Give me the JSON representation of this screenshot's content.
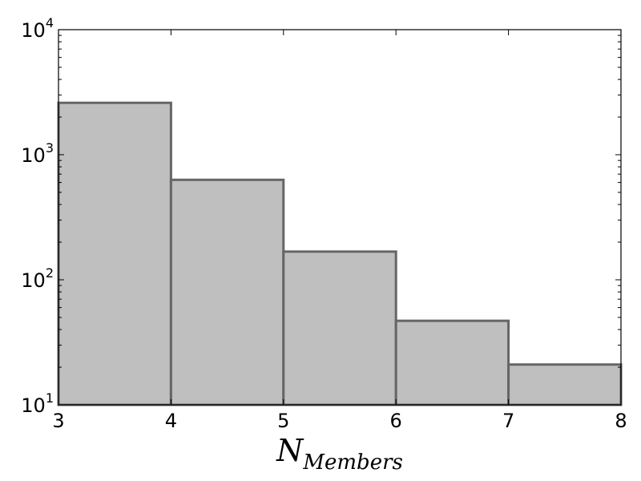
{
  "chart_data": {
    "type": "bar",
    "scale_y": "log",
    "bins": [
      {
        "x0": 3,
        "x1": 4,
        "value": 2600
      },
      {
        "x0": 4,
        "x1": 5,
        "value": 630
      },
      {
        "x0": 5,
        "x1": 6,
        "value": 168
      },
      {
        "x0": 6,
        "x1": 7,
        "value": 47
      },
      {
        "x0": 7,
        "x1": 8,
        "value": 21
      }
    ],
    "xlim": [
      3,
      8
    ],
    "ylim": [
      10,
      10000
    ],
    "x_ticks": [
      "3",
      "4",
      "5",
      "6",
      "7",
      "8"
    ],
    "y_ticks": [
      {
        "base": "10",
        "exp": "1",
        "value": 10
      },
      {
        "base": "10",
        "exp": "2",
        "value": 100
      },
      {
        "base": "10",
        "exp": "3",
        "value": 1000
      },
      {
        "base": "10",
        "exp": "4",
        "value": 10000
      }
    ],
    "xlabel": {
      "main": "N",
      "sub": "Members"
    },
    "ylabel": "",
    "grid": false,
    "bar_fill": "#bfbfbf",
    "bar_edge": "#666666"
  }
}
